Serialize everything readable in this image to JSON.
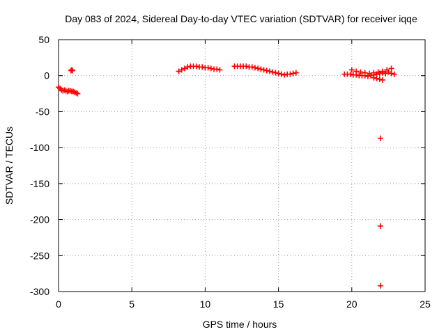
{
  "chart_data": {
    "type": "scatter",
    "title": "Day 083 of 2024, Sidereal Day-to-day VTEC variation (SDTVAR) for receiver iqqe",
    "xlabel": "GPS time / hours",
    "ylabel": "SDTVAR / TECUs",
    "xlim": [
      0,
      25
    ],
    "ylim": [
      -300,
      50
    ],
    "xticks": [
      0,
      5,
      10,
      15,
      20,
      25
    ],
    "yticks": [
      50,
      0,
      -50,
      -100,
      -150,
      -200,
      -250,
      -300
    ],
    "grid": true,
    "marker": "+",
    "color": "#ff0000",
    "series": [
      {
        "name": "SDTVAR",
        "x": [
          0.0,
          0.1,
          0.2,
          0.3,
          0.4,
          0.5,
          0.6,
          0.7,
          0.8,
          0.9,
          1.0,
          1.1,
          1.2,
          1.3,
          0.85,
          0.9,
          0.95,
          8.2,
          8.4,
          8.6,
          8.8,
          9.0,
          9.2,
          9.4,
          9.6,
          9.8,
          10.0,
          10.2,
          10.4,
          10.6,
          10.8,
          11.0,
          12.0,
          12.2,
          12.4,
          12.6,
          12.8,
          13.0,
          13.2,
          13.4,
          13.6,
          13.8,
          14.0,
          14.2,
          14.4,
          14.6,
          14.8,
          15.0,
          15.2,
          15.4,
          15.6,
          15.8,
          16.0,
          16.2,
          19.5,
          19.7,
          19.9,
          20.1,
          20.3,
          20.5,
          20.7,
          20.9,
          21.1,
          21.3,
          21.5,
          21.7,
          21.9,
          22.1,
          22.3,
          22.5,
          22.7,
          22.9,
          20.0,
          20.3,
          20.6,
          20.9,
          21.2,
          21.5,
          21.8,
          22.1,
          22.4,
          22.7,
          21.5,
          21.7,
          21.9,
          22.1,
          21.95,
          21.95,
          21.95
        ],
        "y": [
          -16,
          -18,
          -20,
          -21,
          -20,
          -21,
          -22,
          -21,
          -21,
          -22,
          -22,
          -23,
          -24,
          -25,
          7,
          8,
          7,
          6,
          8,
          10,
          12,
          13,
          13,
          13,
          12,
          12,
          11,
          11,
          10,
          9,
          9,
          8,
          13,
          13,
          13,
          13,
          13,
          12,
          12,
          11,
          10,
          9,
          8,
          7,
          6,
          5,
          4,
          3,
          2,
          1,
          2,
          2,
          3,
          4,
          2,
          2,
          2,
          1,
          1,
          0,
          0,
          0,
          -1,
          0,
          1,
          2,
          3,
          4,
          3,
          5,
          3,
          2,
          8,
          6,
          5,
          4,
          3,
          4,
          5,
          6,
          8,
          10,
          -3,
          -4,
          -5,
          -6,
          -87,
          -209,
          -292
        ]
      }
    ]
  }
}
